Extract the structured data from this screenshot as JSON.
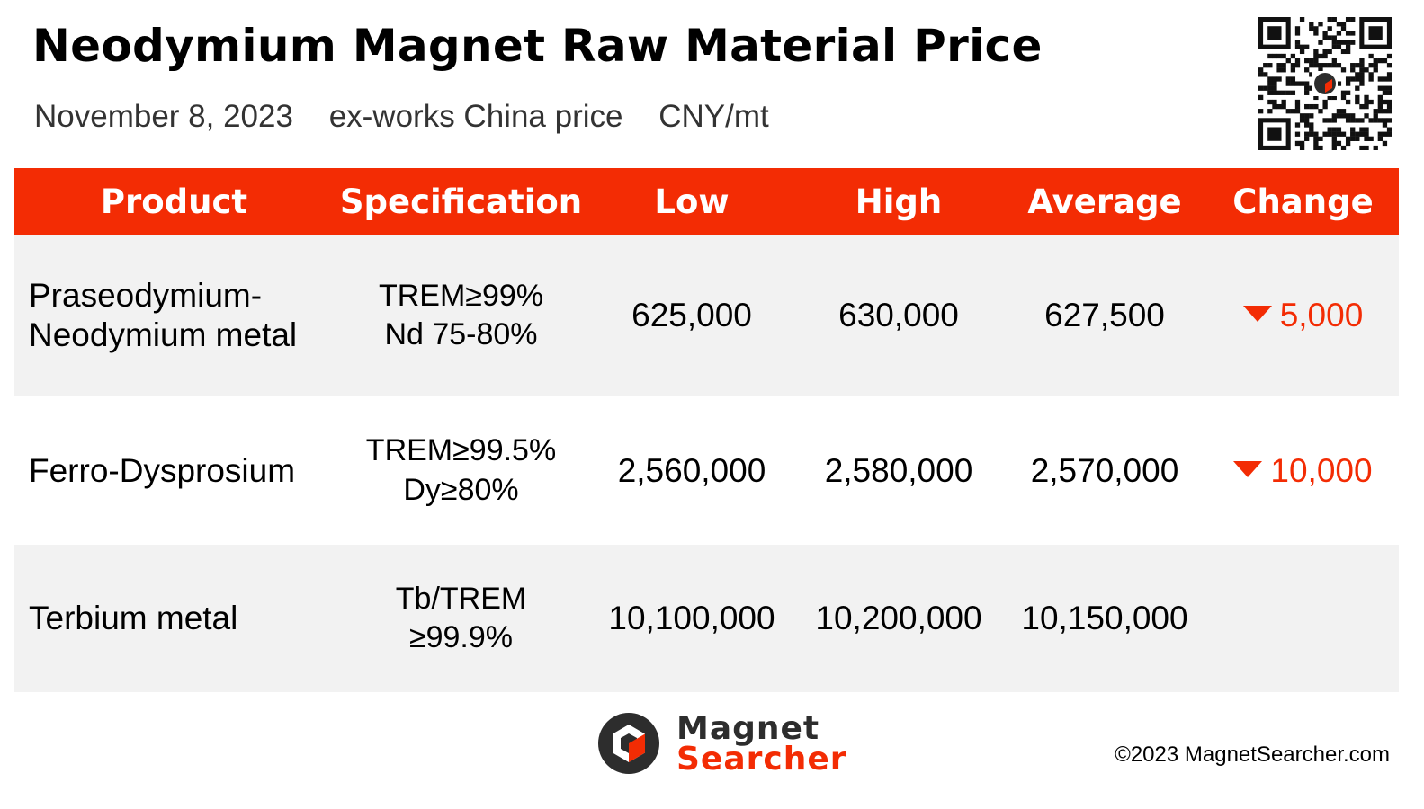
{
  "header": {
    "title": "Neodymium Magnet Raw Material Price",
    "date": "November 8, 2023",
    "price_basis": "ex-works China price",
    "unit": "CNY/mt"
  },
  "table": {
    "columns": [
      "Product",
      "Specification",
      "Low",
      "High",
      "Average",
      "Change"
    ],
    "rows": [
      {
        "product": [
          "Praseodymium-",
          "Neodymium metal"
        ],
        "spec": [
          "TREM≥99%",
          "Nd 75-80%"
        ],
        "low": "625,000",
        "high": "630,000",
        "average": "627,500",
        "change": "5,000",
        "change_direction": "down"
      },
      {
        "product": [
          "Ferro-Dysprosium"
        ],
        "spec": [
          "TREM≥99.5%",
          "Dy≥80%"
        ],
        "low": "2,560,000",
        "high": "2,580,000",
        "average": "2,570,000",
        "change": "10,000",
        "change_direction": "down"
      },
      {
        "product": [
          "Terbium metal"
        ],
        "spec": [
          "Tb/TREM",
          "≥99.9%"
        ],
        "low": "10,100,000",
        "high": "10,200,000",
        "average": "10,150,000",
        "change": "",
        "change_direction": "none"
      }
    ]
  },
  "footer": {
    "logo_icon": "magnet-searcher-logo-icon",
    "brand_line1": "Magnet",
    "brand_line2": "Searcher",
    "copyright": "©2023 MagnetSearcher.com"
  },
  "colors": {
    "accent": "#f32c04",
    "row_alt": "#f2f2f2"
  }
}
